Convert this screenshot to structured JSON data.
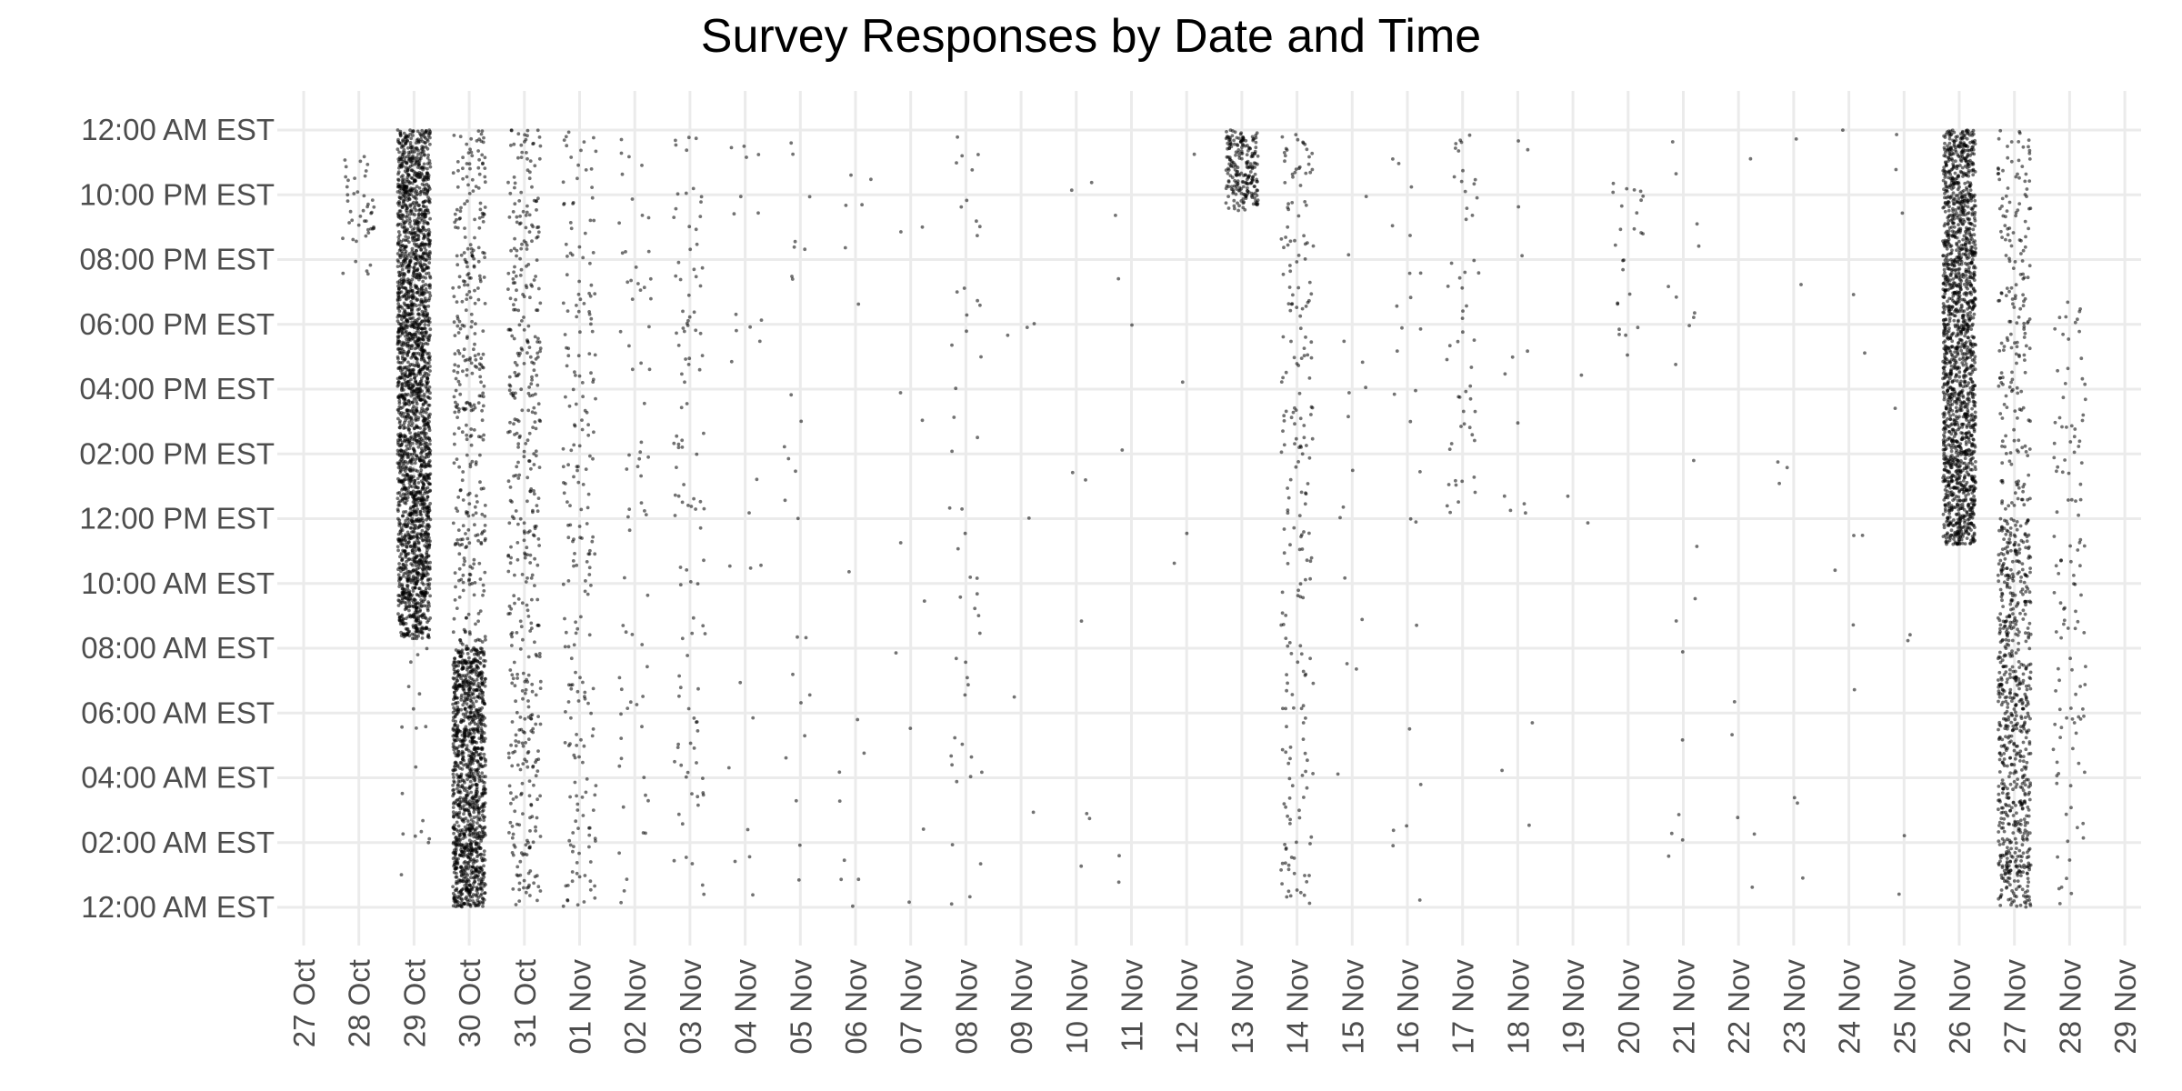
{
  "chart_data": {
    "type": "scatter",
    "title": "Survey Responses by Date and Time",
    "xlabel": "",
    "ylabel": "",
    "grid": true,
    "legend": "none",
    "x_ticks": [
      "27 Oct",
      "28 Oct",
      "29 Oct",
      "30 Oct",
      "31 Oct",
      "01 Nov",
      "02 Nov",
      "03 Nov",
      "04 Nov",
      "05 Nov",
      "06 Nov",
      "07 Nov",
      "08 Nov",
      "09 Nov",
      "10 Nov",
      "11 Nov",
      "12 Nov",
      "13 Nov",
      "14 Nov",
      "15 Nov",
      "16 Nov",
      "17 Nov",
      "18 Nov",
      "19 Nov",
      "20 Nov",
      "21 Nov",
      "22 Nov",
      "23 Nov",
      "24 Nov",
      "25 Nov",
      "26 Nov",
      "27 Nov",
      "28 Nov",
      "29 Nov"
    ],
    "y_ticks": [
      "12:00 AM EST",
      "02:00 AM EST",
      "04:00 AM EST",
      "06:00 AM EST",
      "08:00 AM EST",
      "10:00 AM EST",
      "12:00 PM EST",
      "02:00 PM EST",
      "04:00 PM EST",
      "06:00 PM EST",
      "08:00 PM EST",
      "10:00 PM EST",
      "12:00 AM EST"
    ],
    "y_range_hours": [
      0,
      24
    ],
    "point_color": "#000000",
    "point_opacity": 0.55,
    "gridline_color": "#ebebeb",
    "note_on_series": "Jittered individual responses; each entry is a date with its response count and the hour range (0-24) in which responses cluster.",
    "series": [
      {
        "date": "28 Oct",
        "count": 45,
        "hours": [
          [
            19.5,
            23.2
          ]
        ]
      },
      {
        "date": "29 Oct",
        "count": 2400,
        "hours": [
          [
            8.3,
            24
          ]
        ]
      },
      {
        "date": "29 Oct",
        "count": 18,
        "hours": [
          [
            0.3,
            8
          ]
        ]
      },
      {
        "date": "30 Oct",
        "count": 1200,
        "hours": [
          [
            0,
            8
          ]
        ]
      },
      {
        "date": "30 Oct",
        "count": 350,
        "hours": [
          [
            8,
            24
          ]
        ]
      },
      {
        "date": "31 Oct",
        "count": 450,
        "hours": [
          [
            0,
            24
          ]
        ]
      },
      {
        "date": "01 Nov",
        "count": 220,
        "hours": [
          [
            0,
            24
          ]
        ]
      },
      {
        "date": "02 Nov",
        "count": 70,
        "hours": [
          [
            0,
            24
          ]
        ]
      },
      {
        "date": "03 Nov",
        "count": 110,
        "hours": [
          [
            0,
            24
          ]
        ]
      },
      {
        "date": "04 Nov",
        "count": 25,
        "hours": [
          [
            0,
            24
          ]
        ]
      },
      {
        "date": "05 Nov",
        "count": 25,
        "hours": [
          [
            0,
            24
          ]
        ]
      },
      {
        "date": "06 Nov",
        "count": 15,
        "hours": [
          [
            0,
            24
          ]
        ]
      },
      {
        "date": "07 Nov",
        "count": 10,
        "hours": [
          [
            0,
            24
          ]
        ]
      },
      {
        "date": "08 Nov",
        "count": 50,
        "hours": [
          [
            0,
            24
          ]
        ]
      },
      {
        "date": "09 Nov",
        "count": 6,
        "hours": [
          [
            0,
            24
          ]
        ]
      },
      {
        "date": "10 Nov",
        "count": 8,
        "hours": [
          [
            0,
            24
          ]
        ]
      },
      {
        "date": "11 Nov",
        "count": 6,
        "hours": [
          [
            0,
            24
          ]
        ]
      },
      {
        "date": "12 Nov",
        "count": 4,
        "hours": [
          [
            0,
            24
          ]
        ]
      },
      {
        "date": "13 Nov",
        "count": 220,
        "hours": [
          [
            21.5,
            24
          ]
        ]
      },
      {
        "date": "14 Nov",
        "count": 220,
        "hours": [
          [
            0,
            24
          ]
        ]
      },
      {
        "date": "15 Nov",
        "count": 15,
        "hours": [
          [
            0,
            24
          ]
        ]
      },
      {
        "date": "16 Nov",
        "count": 25,
        "hours": [
          [
            0,
            24
          ]
        ]
      },
      {
        "date": "17 Nov",
        "count": 55,
        "hours": [
          [
            12,
            24
          ]
        ]
      },
      {
        "date": "18 Nov",
        "count": 15,
        "hours": [
          [
            0,
            24
          ]
        ]
      },
      {
        "date": "19 Nov",
        "count": 3,
        "hours": [
          [
            0,
            24
          ]
        ]
      },
      {
        "date": "20 Nov",
        "count": 25,
        "hours": [
          [
            17,
            24
          ]
        ]
      },
      {
        "date": "21 Nov",
        "count": 20,
        "hours": [
          [
            0,
            24
          ]
        ]
      },
      {
        "date": "22 Nov",
        "count": 6,
        "hours": [
          [
            0,
            24
          ]
        ]
      },
      {
        "date": "23 Nov",
        "count": 8,
        "hours": [
          [
            0,
            24
          ]
        ]
      },
      {
        "date": "24 Nov",
        "count": 8,
        "hours": [
          [
            0,
            24
          ]
        ]
      },
      {
        "date": "25 Nov",
        "count": 8,
        "hours": [
          [
            0,
            24
          ]
        ]
      },
      {
        "date": "26 Nov",
        "count": 1700,
        "hours": [
          [
            11.2,
            24
          ]
        ]
      },
      {
        "date": "27 Nov",
        "count": 700,
        "hours": [
          [
            0,
            12
          ]
        ]
      },
      {
        "date": "27 Nov",
        "count": 200,
        "hours": [
          [
            12,
            24
          ]
        ]
      },
      {
        "date": "28 Nov",
        "count": 120,
        "hours": [
          [
            0,
            19
          ]
        ]
      }
    ]
  }
}
